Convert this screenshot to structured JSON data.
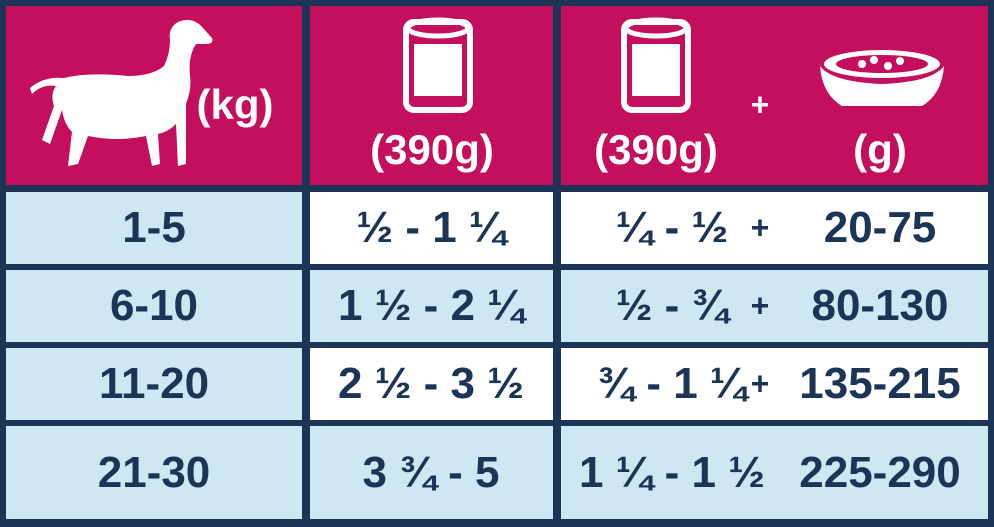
{
  "header": {
    "weight_unit": "(kg)",
    "wet_unit": "(390g)",
    "mixed_wet_unit": "(390g)",
    "plus": "+",
    "dry_unit": "(g)"
  },
  "table": {
    "rows": [
      {
        "weight": "1-5",
        "wet": "½ - 1 ¼",
        "mixed_wet": "¼ - ½",
        "plus": "+",
        "dry": "20-75"
      },
      {
        "weight": "6-10",
        "wet": "1 ½ - 2 ¼",
        "mixed_wet": "½ - ¾",
        "plus": "+",
        "dry": "80-130"
      },
      {
        "weight": "11-20",
        "wet": "2 ½ - 3 ½",
        "mixed_wet": "¾ - 1 ¼",
        "plus": "+",
        "dry": "135-215"
      },
      {
        "weight": "21-30",
        "wet": "3 ¾ - 5",
        "mixed_wet": "1 ¼ - 1 ½",
        "dry": "225-290"
      }
    ]
  }
}
